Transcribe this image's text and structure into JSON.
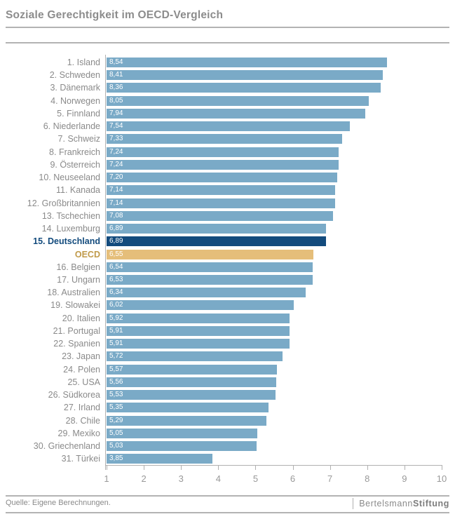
{
  "title": "Soziale Gerechtigkeit im OECD-Vergleich",
  "footer": {
    "source": "Quelle: Eigene Berechnungen.",
    "brand_regular": "Bertelsmann",
    "brand_bold": "Stiftung"
  },
  "colors": {
    "bar_default": "#7aaac7",
    "bar_highlight": "#134b7d",
    "bar_oecd": "#e5be7a",
    "label_default": "#8a8a8a",
    "label_highlight": "#134b7d",
    "label_oecd": "#c09a4a",
    "value_text": "#ffffff",
    "axis": "#b0b0b0",
    "title_text": "#8c8c8c"
  },
  "chart_data": {
    "type": "bar",
    "orientation": "horizontal",
    "title": "Soziale Gerechtigkeit im OECD-Vergleich",
    "xlabel": "",
    "ylabel": "",
    "xlim": [
      1,
      10
    ],
    "x_ticks": [
      1,
      2,
      3,
      4,
      5,
      6,
      7,
      8,
      9,
      10
    ],
    "grid": false,
    "legend": false,
    "rows": [
      {
        "label": "1. Island",
        "value": 8.54,
        "value_label": "8,54",
        "style": "default"
      },
      {
        "label": "2. Schweden",
        "value": 8.41,
        "value_label": "8,41",
        "style": "default"
      },
      {
        "label": "3. Dänemark",
        "value": 8.36,
        "value_label": "8,36",
        "style": "default"
      },
      {
        "label": "4. Norwegen",
        "value": 8.05,
        "value_label": "8,05",
        "style": "default"
      },
      {
        "label": "5. Finnland",
        "value": 7.94,
        "value_label": "7,94",
        "style": "default"
      },
      {
        "label": "6. Niederlande",
        "value": 7.54,
        "value_label": "7,54",
        "style": "default"
      },
      {
        "label": "7. Schweiz",
        "value": 7.33,
        "value_label": "7,33",
        "style": "default"
      },
      {
        "label": "8. Frankreich",
        "value": 7.24,
        "value_label": "7,24",
        "style": "default"
      },
      {
        "label": "9. Österreich",
        "value": 7.24,
        "value_label": "7,24",
        "style": "default"
      },
      {
        "label": "10. Neuseeland",
        "value": 7.2,
        "value_label": "7,20",
        "style": "default"
      },
      {
        "label": "11. Kanada",
        "value": 7.14,
        "value_label": "7,14",
        "style": "default"
      },
      {
        "label": "12. Großbritannien",
        "value": 7.14,
        "value_label": "7,14",
        "style": "default"
      },
      {
        "label": "13. Tschechien",
        "value": 7.08,
        "value_label": "7,08",
        "style": "default"
      },
      {
        "label": "14. Luxemburg",
        "value": 6.89,
        "value_label": "6,89",
        "style": "default"
      },
      {
        "label": "15. Deutschland",
        "value": 6.89,
        "value_label": "6,89",
        "style": "highlight"
      },
      {
        "label": "OECD",
        "value": 6.55,
        "value_label": "6,55",
        "style": "oecd"
      },
      {
        "label": "16. Belgien",
        "value": 6.54,
        "value_label": "6,54",
        "style": "default"
      },
      {
        "label": "17. Ungarn",
        "value": 6.53,
        "value_label": "6,53",
        "style": "default"
      },
      {
        "label": "18. Australien",
        "value": 6.34,
        "value_label": "6,34",
        "style": "default"
      },
      {
        "label": "19. Slowakei",
        "value": 6.02,
        "value_label": "6,02",
        "style": "default"
      },
      {
        "label": "20. Italien",
        "value": 5.92,
        "value_label": "5,92",
        "style": "default"
      },
      {
        "label": "21. Portugal",
        "value": 5.91,
        "value_label": "5,91",
        "style": "default"
      },
      {
        "label": "22. Spanien",
        "value": 5.91,
        "value_label": "5,91",
        "style": "default"
      },
      {
        "label": "23. Japan",
        "value": 5.72,
        "value_label": "5,72",
        "style": "default"
      },
      {
        "label": "24. Polen",
        "value": 5.57,
        "value_label": "5,57",
        "style": "default"
      },
      {
        "label": "25. USA",
        "value": 5.56,
        "value_label": "5,56",
        "style": "default"
      },
      {
        "label": "26. Südkorea",
        "value": 5.53,
        "value_label": "5,53",
        "style": "default"
      },
      {
        "label": "27. Irland",
        "value": 5.35,
        "value_label": "5,35",
        "style": "default"
      },
      {
        "label": "28. Chile",
        "value": 5.29,
        "value_label": "5,29",
        "style": "default"
      },
      {
        "label": "29. Mexiko",
        "value": 5.05,
        "value_label": "5,05",
        "style": "default"
      },
      {
        "label": "30. Griechenland",
        "value": 5.03,
        "value_label": "5,03",
        "style": "default"
      },
      {
        "label": "31. Türkei",
        "value": 3.85,
        "value_label": "3,85",
        "style": "default"
      }
    ]
  }
}
